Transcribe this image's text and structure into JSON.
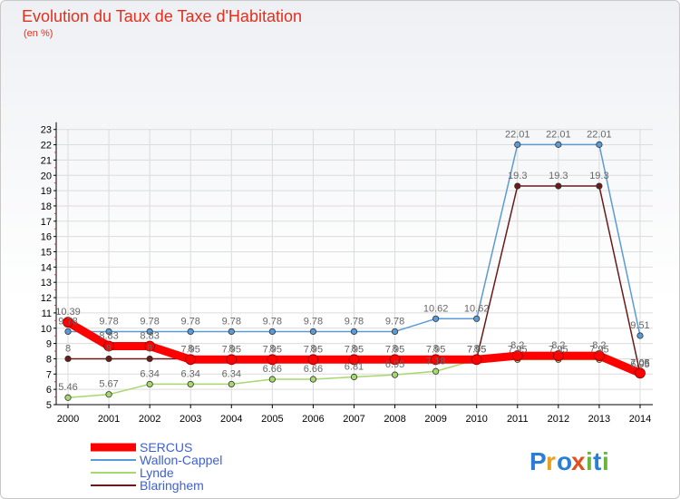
{
  "chart_data": {
    "type": "line",
    "title": "Evolution du Taux de Taxe d'Habitation",
    "subtitle": "(en %)",
    "xlabel": "",
    "ylabel": "",
    "ylim": [
      5,
      23
    ],
    "yticks": [
      "5",
      "6",
      "7",
      "8",
      "9",
      "10",
      "11",
      "12",
      "13",
      "14",
      "15",
      "16",
      "17",
      "18",
      "19",
      "20",
      "21",
      "22",
      "23"
    ],
    "categories": [
      "2000",
      "2001",
      "2002",
      "2003",
      "2004",
      "2005",
      "2006",
      "2007",
      "2008",
      "2009",
      "2010",
      "2011",
      "2012",
      "2013",
      "2014"
    ],
    "series": [
      {
        "name": "SERCUS",
        "color": "#ff0000",
        "values": [
          10.39,
          8.83,
          8.83,
          7.95,
          7.95,
          7.95,
          7.95,
          7.95,
          7.95,
          7.95,
          7.95,
          8.2,
          8.2,
          8.2,
          7.06
        ],
        "labels": [
          "10.39",
          "8.83",
          "8.83",
          "7.95",
          "7.95",
          "7.95",
          "7.95",
          "7.95",
          "7.95",
          "7.95",
          "7.95",
          "8.2",
          "8.2",
          "8.2",
          "7.06"
        ]
      },
      {
        "name": "Wallon-Cappel",
        "color": "#5b9bd5",
        "values": [
          9.78,
          9.78,
          9.78,
          9.78,
          9.78,
          9.78,
          9.78,
          9.78,
          9.78,
          10.62,
          10.62,
          22.01,
          22.01,
          22.01,
          9.51
        ],
        "labels": [
          "9.78",
          "9.78",
          "9.78",
          "9.78",
          "9.78",
          "9.78",
          "9.78",
          "9.78",
          "9.78",
          "10.62",
          "10.62",
          "22.01",
          "22.01",
          "22.01",
          "9.51"
        ]
      },
      {
        "name": "Lynde",
        "color": "#a6d86e",
        "values": [
          5.46,
          5.67,
          6.34,
          6.34,
          6.34,
          6.66,
          6.66,
          6.81,
          6.95,
          7.18,
          7.95,
          7.95,
          7.95,
          7.95,
          6.95
        ],
        "labels": [
          "5.46",
          "5.67",
          "6.34",
          "6.34",
          "6.34",
          "6.66",
          "6.66",
          "6.81",
          "6.95",
          "7.18",
          "7.95",
          "7.95",
          "7.95",
          "7.95",
          "6.95"
        ]
      },
      {
        "name": "Blaringhem",
        "color": "#6b1a1a",
        "values": [
          8,
          8,
          8,
          8,
          8,
          8,
          8,
          8,
          8,
          8,
          8,
          19.3,
          19.3,
          19.3,
          7.05
        ],
        "labels": [
          "8",
          "8",
          "8",
          "8",
          "8",
          "8",
          "8",
          "8",
          "8",
          "8",
          "8",
          "19.3",
          "19.3",
          "19.3",
          "7.05"
        ]
      }
    ],
    "legend_position": "bottom-left"
  },
  "branding": {
    "logo_text": "Proxiti",
    "logo_letters": [
      "P",
      "r",
      "o",
      "x",
      "i",
      "t",
      "i"
    ],
    "logo_colors": [
      "#2a7fd4",
      "#e8a020",
      "#2a7fd4",
      "#e05020",
      "#6ab43c",
      "#2a7fd4",
      "#6ab43c"
    ]
  }
}
